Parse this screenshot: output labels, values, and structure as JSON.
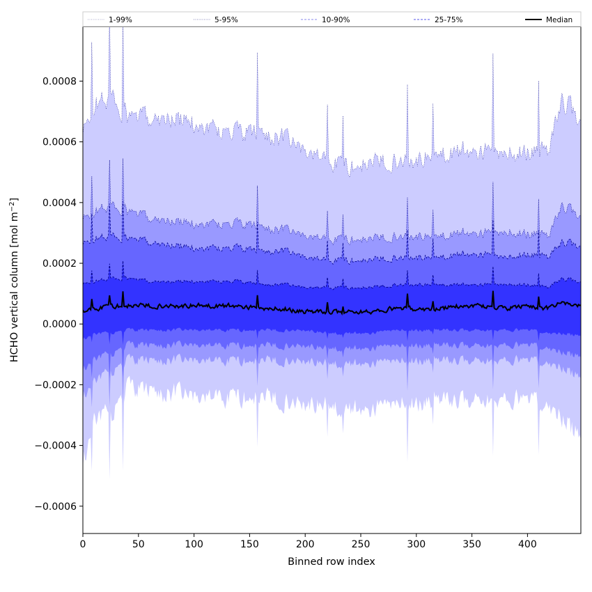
{
  "chart_data": {
    "type": "area",
    "title": "",
    "xlabel": "Binned row index",
    "ylabel": "HCHO vertical column [mol m",
    "ylabel_exp": "−2",
    "ylabel_close": "]",
    "xlim": [
      0,
      448
    ],
    "ylim": [
      -0.00069,
      0.00098
    ],
    "xticks": [
      {
        "value": 0,
        "label": "0"
      },
      {
        "value": 50,
        "label": "50"
      },
      {
        "value": 100,
        "label": "100"
      },
      {
        "value": 150,
        "label": "150"
      },
      {
        "value": 200,
        "label": "200"
      },
      {
        "value": 250,
        "label": "250"
      },
      {
        "value": 300,
        "label": "300"
      },
      {
        "value": 350,
        "label": "350"
      },
      {
        "value": 400,
        "label": "400"
      }
    ],
    "yticks": [
      {
        "value": -0.0006,
        "label": "−0.0006"
      },
      {
        "value": -0.0004,
        "label": "−0.0004"
      },
      {
        "value": -0.0002,
        "label": "−0.0002"
      },
      {
        "value": 0.0,
        "label": "0.0000"
      },
      {
        "value": 0.0002,
        "label": "0.0002"
      },
      {
        "value": 0.0004,
        "label": "0.0004"
      },
      {
        "value": 0.0006,
        "label": "0.0006"
      },
      {
        "value": 0.0008,
        "label": "0.0008"
      }
    ],
    "legend_position": "top, horizontal strip above the plot",
    "colors": {
      "band_1_99": "#ccccff",
      "band_5_95": "#9999ff",
      "band_10_90": "#6666ff",
      "band_25_75": "#3333ff",
      "edge": "#00008b",
      "median": "#000000"
    },
    "legend": [
      {
        "label": "1-99%",
        "style": "dotted",
        "color": "#aaaacc"
      },
      {
        "label": "5-95%",
        "style": "dotted",
        "color": "#8888bb"
      },
      {
        "label": "10-90%",
        "style": "dashed",
        "color": "#8888ee"
      },
      {
        "label": "25-75%",
        "style": "dashed",
        "color": "#5555ee"
      },
      {
        "label": "Median",
        "style": "solid",
        "color": "#000000"
      }
    ],
    "x_anchors": [
      0,
      10,
      25,
      40,
      60,
      80,
      100,
      120,
      140,
      160,
      180,
      200,
      220,
      240,
      260,
      280,
      300,
      320,
      340,
      360,
      380,
      400,
      420,
      430,
      448
    ],
    "series": [
      {
        "name": "1-99%",
        "kind": "band",
        "lower": [
          -0.00046,
          -0.0003,
          -0.0003,
          -0.00021,
          -0.00022,
          -0.00023,
          -0.00024,
          -0.00024,
          -0.00024,
          -0.00024,
          -0.00025,
          -0.00026,
          -0.00027,
          -0.00028,
          -0.00028,
          -0.00026,
          -0.00026,
          -0.00025,
          -0.00025,
          -0.00025,
          -0.00025,
          -0.00025,
          -0.00027,
          -0.0003,
          -0.00038
        ],
        "upper": [
          0.00062,
          0.00072,
          0.00075,
          0.00068,
          0.00068,
          0.00068,
          0.00066,
          0.00064,
          0.00063,
          0.00063,
          0.00061,
          0.00057,
          0.00054,
          0.00052,
          0.00053,
          0.00054,
          0.00054,
          0.00056,
          0.00057,
          0.00057,
          0.00056,
          0.00057,
          0.00057,
          0.00074,
          0.00068
        ]
      },
      {
        "name": "5-95%",
        "kind": "band",
        "lower": [
          -0.00024,
          -0.00018,
          -0.00016,
          -0.00012,
          -0.00012,
          -0.00012,
          -0.00012,
          -0.00012,
          -0.00012,
          -0.00012,
          -0.00012,
          -0.00012,
          -0.00013,
          -0.00013,
          -0.00013,
          -0.00012,
          -0.00012,
          -0.00012,
          -0.00012,
          -0.00012,
          -0.00012,
          -0.00012,
          -0.00013,
          -0.00014,
          -0.00018
        ],
        "upper": [
          0.00034,
          0.00037,
          0.00039,
          0.00037,
          0.00035,
          0.00034,
          0.00033,
          0.00033,
          0.00033,
          0.00032,
          0.00031,
          0.00029,
          0.00028,
          0.00028,
          0.00028,
          0.00029,
          0.00029,
          0.00029,
          0.0003,
          0.0003,
          0.0003,
          0.0003,
          0.00029,
          0.00039,
          0.00036
        ]
      },
      {
        "name": "10-90%",
        "kind": "band",
        "lower": [
          -0.00015,
          -0.00011,
          -0.0001,
          -7e-05,
          -7e-05,
          -7e-05,
          -7e-05,
          -7e-05,
          -7e-05,
          -7e-05,
          -7e-05,
          -7e-05,
          -8e-05,
          -8e-05,
          -8e-05,
          -7e-05,
          -7e-05,
          -7e-05,
          -7e-05,
          -7e-05,
          -7e-05,
          -7e-05,
          -8e-05,
          -9e-05,
          -0.00011
        ],
        "upper": [
          0.00026,
          0.00028,
          0.00029,
          0.00028,
          0.00027,
          0.00026,
          0.00025,
          0.00025,
          0.00025,
          0.00024,
          0.00024,
          0.00022,
          0.00021,
          0.00021,
          0.00021,
          0.00022,
          0.00022,
          0.00022,
          0.00023,
          0.00023,
          0.00022,
          0.00023,
          0.00022,
          0.00027,
          0.00026
        ]
      },
      {
        "name": "25-75%",
        "kind": "band",
        "lower": [
          -5e-05,
          -3e-05,
          -3e-05,
          -2e-05,
          -2e-05,
          -2e-05,
          -2e-05,
          -2e-05,
          -2e-05,
          -2e-05,
          -2e-05,
          -2e-05,
          -3e-05,
          -3e-05,
          -3e-05,
          -2e-05,
          -2e-05,
          -2e-05,
          -2e-05,
          -2e-05,
          -2e-05,
          -2e-05,
          -3e-05,
          -3e-05,
          -4e-05
        ],
        "upper": [
          0.00013,
          0.00014,
          0.00015,
          0.00015,
          0.00014,
          0.00014,
          0.00014,
          0.00014,
          0.00014,
          0.00013,
          0.00013,
          0.00012,
          0.00012,
          0.00012,
          0.00012,
          0.00013,
          0.00013,
          0.00013,
          0.00013,
          0.00013,
          0.00013,
          0.00013,
          0.00012,
          0.00015,
          0.00014
        ]
      },
      {
        "name": "Median",
        "kind": "line",
        "values": [
          4e-05,
          5e-05,
          6e-05,
          6e-05,
          6e-05,
          6e-05,
          6e-05,
          6e-05,
          6e-05,
          5e-05,
          5e-05,
          4e-05,
          4e-05,
          4e-05,
          4e-05,
          5e-05,
          5e-05,
          5e-05,
          6e-05,
          6e-05,
          5e-05,
          6e-05,
          5e-05,
          7e-05,
          6e-05
        ]
      }
    ]
  }
}
